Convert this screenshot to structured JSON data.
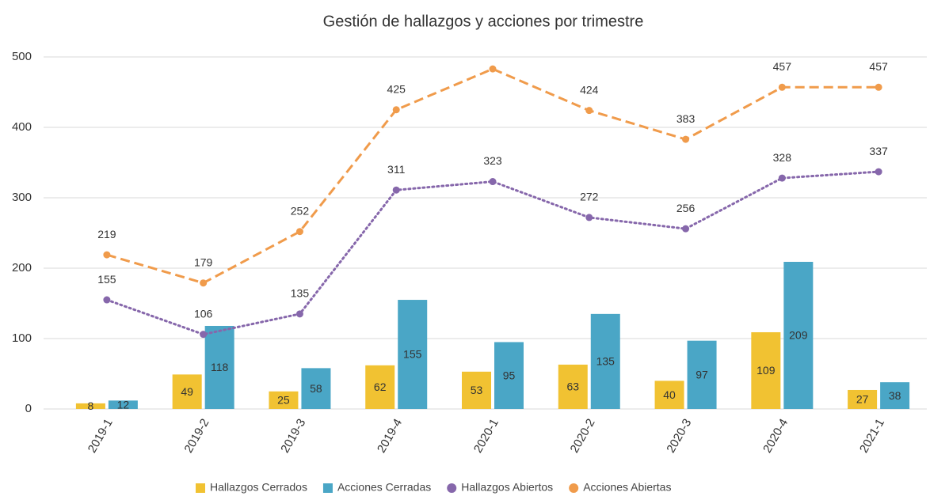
{
  "chart_data": {
    "type": "bar_line",
    "title": "Gestión de hallazgos y acciones por trimestre",
    "categories": [
      "2019-1",
      "2019-2",
      "2019-3",
      "2019-4",
      "2020-1",
      "2020-2",
      "2020-3",
      "2020-4",
      "2021-1"
    ],
    "series": [
      {
        "name": "Hallazgos Cerrados",
        "color": "#f1c232",
        "kind": "bar",
        "values": [
          8,
          49,
          25,
          62,
          53,
          63,
          40,
          109,
          27
        ]
      },
      {
        "name": "Acciones Cerradas",
        "color": "#4aa6c6",
        "kind": "bar",
        "values": [
          12,
          118,
          58,
          155,
          95,
          135,
          97,
          209,
          38
        ]
      },
      {
        "name": "Hallazgos Abiertos",
        "color": "#8667ab",
        "kind": "line",
        "dash": "dotted",
        "values": [
          155,
          106,
          135,
          311,
          323,
          272,
          256,
          328,
          337
        ]
      },
      {
        "name": "Acciones Abiertas",
        "color": "#f09b4b",
        "kind": "line",
        "dash": "dashed",
        "values": [
          219,
          179,
          252,
          425,
          483,
          424,
          383,
          457,
          457
        ],
        "value_labels": [
          "219",
          "179",
          "252",
          "425",
          null,
          "424",
          "383",
          "457",
          "457"
        ]
      }
    ],
    "ylim": [
      0,
      500
    ],
    "yticks": [
      0,
      100,
      200,
      300,
      400,
      500
    ],
    "grid": true,
    "legend": "bottom"
  }
}
